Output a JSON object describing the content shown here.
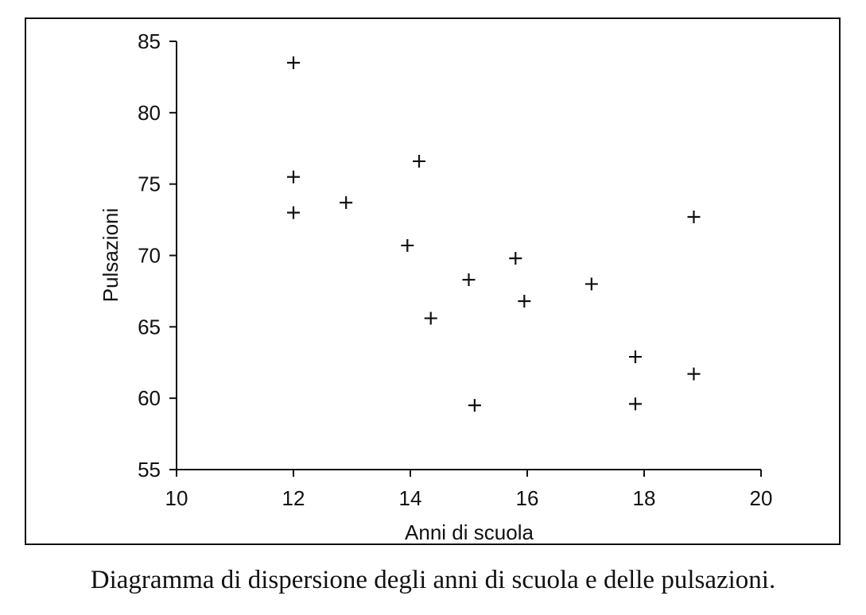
{
  "chart_data": {
    "type": "scatter",
    "marker": "plus",
    "xlabel": "Anni di scuola",
    "ylabel": "Pulsazioni",
    "xlim": [
      10,
      20
    ],
    "ylim": [
      55,
      85
    ],
    "xticks": [
      10,
      12,
      14,
      16,
      18,
      20
    ],
    "yticks": [
      55,
      60,
      65,
      70,
      75,
      80,
      85
    ],
    "grid": false,
    "points": [
      {
        "x": 12,
        "y": 83.5
      },
      {
        "x": 12,
        "y": 75.5
      },
      {
        "x": 12,
        "y": 73
      },
      {
        "x": 12.9,
        "y": 73.7
      },
      {
        "x": 13.95,
        "y": 70.7
      },
      {
        "x": 14.15,
        "y": 76.6
      },
      {
        "x": 14.35,
        "y": 65.6
      },
      {
        "x": 15,
        "y": 68.3
      },
      {
        "x": 15.1,
        "y": 59.5
      },
      {
        "x": 15.8,
        "y": 69.8
      },
      {
        "x": 15.95,
        "y": 66.8
      },
      {
        "x": 17.1,
        "y": 68
      },
      {
        "x": 17.85,
        "y": 62.9
      },
      {
        "x": 17.85,
        "y": 59.6
      },
      {
        "x": 18.85,
        "y": 72.7
      },
      {
        "x": 18.85,
        "y": 61.7
      }
    ]
  },
  "caption": "Diagramma di dispersione degli anni di scuola e delle pulsazioni."
}
